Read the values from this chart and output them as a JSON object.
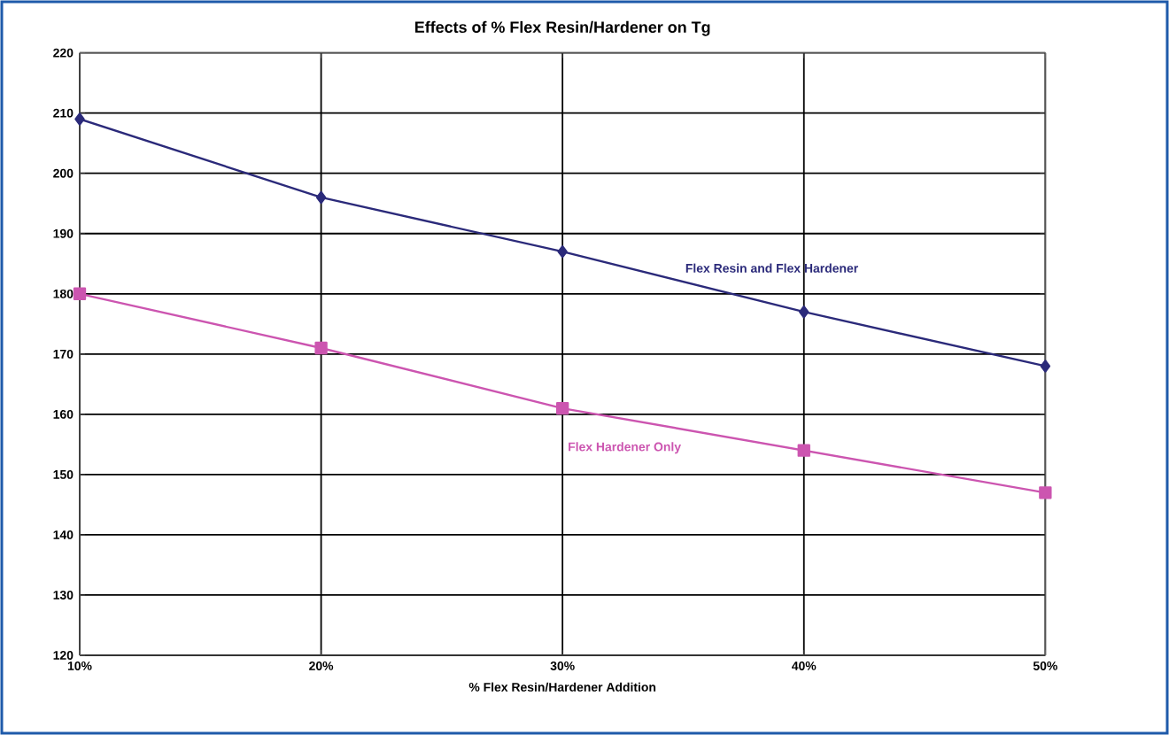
{
  "chart_data": {
    "type": "line",
    "title": "Effects of % Flex Resin/Hardener on Tg",
    "xlabel": "% Flex Resin/Hardener Addition",
    "x": [
      10,
      20,
      30,
      40,
      50
    ],
    "series": [
      {
        "name": "Flex Resin and Flex Hardener",
        "color": "#2b2a7a",
        "marker": "diamond",
        "values": [
          209,
          196,
          187,
          177,
          168
        ]
      },
      {
        "name": "Flex Hardener Only",
        "color": "#cc55b0",
        "marker": "square",
        "values": [
          180,
          171,
          161,
          154,
          147
        ]
      }
    ],
    "xlim": [
      10,
      50
    ],
    "ylim": [
      120,
      220
    ],
    "xticks": [
      {
        "value": 10,
        "label": "10%"
      },
      {
        "value": 20,
        "label": "20%"
      },
      {
        "value": 30,
        "label": "30%"
      },
      {
        "value": 40,
        "label": "40%"
      },
      {
        "value": 50,
        "label": "50%"
      }
    ],
    "yticks": [
      120,
      130,
      140,
      150,
      160,
      170,
      180,
      190,
      200,
      210,
      220
    ],
    "grid": true
  }
}
